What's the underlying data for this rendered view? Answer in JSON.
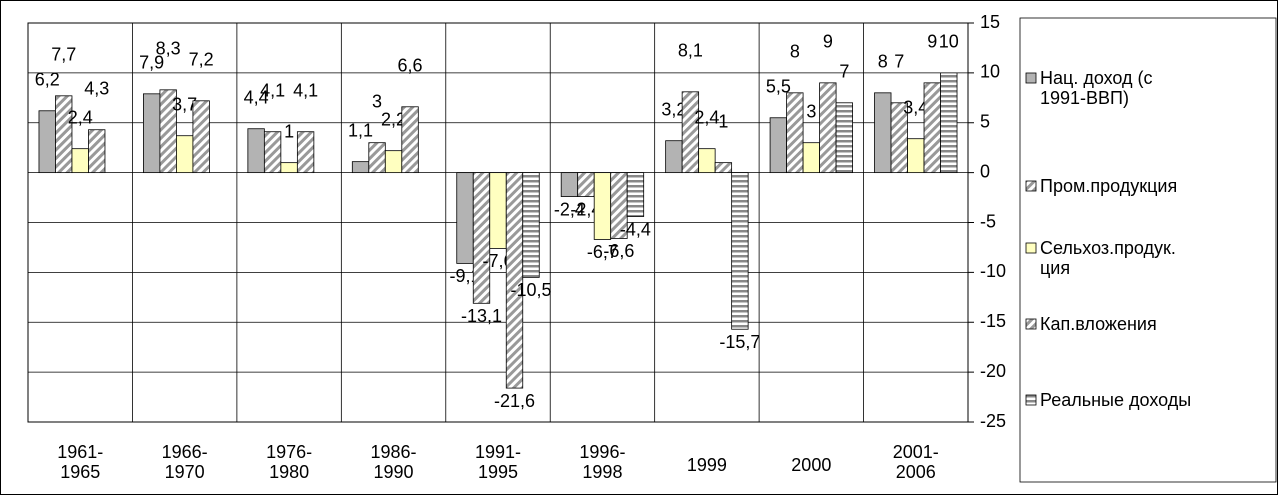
{
  "chart_data": {
    "type": "bar",
    "categories": [
      "1961-\n1965",
      "1966-\n1970",
      "1976-\n1980",
      "1986-\n1990",
      "1991-\n1995",
      "1996-\n1998",
      "1999",
      "2000",
      "2001-\n2006"
    ],
    "series": [
      {
        "name": "Нац. доход (с\n1991-ВВП)",
        "color": "#b3b3b3",
        "pattern": "none",
        "values": [
          6.2,
          7.9,
          4.4,
          1.1,
          -9.1,
          -2.4,
          3.2,
          5.5,
          8
        ],
        "value_labels": [
          "6,2",
          "7,9",
          "4,4",
          "1,1",
          "-9,1",
          "-2,4",
          "3,2",
          "5,5",
          "8"
        ]
      },
      {
        "name": "Пром.продукция",
        "color": "#ffffff",
        "pattern": "diagonal",
        "values": [
          7.7,
          8.3,
          4.1,
          3,
          -13.1,
          -2.4,
          8.1,
          8,
          7
        ],
        "value_labels": [
          "7,7",
          "8,3",
          "4,1",
          "3",
          "-13,1",
          "-2,4",
          "8,1",
          "8",
          "7"
        ]
      },
      {
        "name": "Сельхоз.продук.\nция",
        "color": "#ffffc0",
        "pattern": "none",
        "values": [
          2.4,
          3.7,
          1,
          2.2,
          -7.6,
          -6.7,
          2.4,
          3,
          3.4
        ],
        "value_labels": [
          "2,4",
          "3,7",
          "1",
          "2,2",
          "-7,6",
          "-6,7",
          "2,4",
          "3",
          "3,4"
        ]
      },
      {
        "name": "Кап.вложения",
        "color": "#c8c8c8",
        "pattern": "diagonal",
        "values": [
          4.3,
          7.2,
          4.1,
          6.6,
          -21.6,
          -6.6,
          1,
          9,
          9
        ],
        "value_labels": [
          "4,3",
          "7,2",
          "4,1",
          "6,6",
          "-21,6",
          "-6,6",
          "1",
          "9",
          "9"
        ]
      },
      {
        "name": "Реальные доходы",
        "color": "#a0a0a0",
        "pattern": "horizontal",
        "values": [
          null,
          null,
          null,
          null,
          -10.5,
          -4.4,
          -15.7,
          7,
          10
        ],
        "value_labels": [
          null,
          null,
          null,
          null,
          "-10,5",
          "-4,4",
          "-15,7",
          "7",
          "10"
        ]
      }
    ],
    "ylim": [
      -25,
      15
    ],
    "yticks": [
      -25,
      -20,
      -15,
      -10,
      -5,
      0,
      5,
      10,
      15
    ],
    "grid": true,
    "legend": "right"
  }
}
